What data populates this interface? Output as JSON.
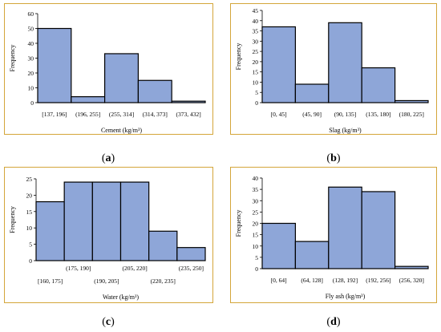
{
  "chart_data": [
    {
      "type": "bar",
      "caption": "a",
      "xlabel": "Cement (kg/m³)",
      "ylabel": "Frequency",
      "ylim": [
        0,
        60
      ],
      "yticks": [
        0,
        10,
        20,
        30,
        40,
        50,
        60
      ],
      "categories": [
        "[137, 196]",
        "(196, 255]",
        "(255, 314]",
        "(314, 373]",
        "(373, 432]"
      ],
      "values": [
        50,
        4,
        33,
        15,
        1
      ],
      "label_rows": [
        0,
        0,
        0,
        0,
        0
      ],
      "grid": false,
      "colors": {
        "fill": "#8ea6d8",
        "edge": "#000000"
      }
    },
    {
      "type": "bar",
      "caption": "b",
      "xlabel": "Slag (kg/m³)",
      "ylabel": "Frequency",
      "ylim": [
        0,
        45
      ],
      "yticks": [
        0,
        5,
        10,
        15,
        20,
        25,
        30,
        35,
        40,
        45
      ],
      "categories": [
        "[0, 45]",
        "(45, 90]",
        "(90, 135]",
        "(135, 180]",
        "(180, 225]"
      ],
      "values": [
        37,
        9,
        39,
        17,
        1
      ],
      "label_rows": [
        0,
        0,
        0,
        0,
        0
      ],
      "grid": false,
      "colors": {
        "fill": "#8ea6d8",
        "edge": "#000000"
      }
    },
    {
      "type": "bar",
      "caption": "c",
      "xlabel": "Water (kg/m³)",
      "ylabel": "Frequency",
      "ylim": [
        0,
        25
      ],
      "yticks": [
        0,
        5,
        10,
        15,
        20,
        25
      ],
      "categories": [
        "[160, 175]",
        "(175, 190]",
        "(190, 205]",
        "(205, 220]",
        "(220, 235]",
        "(235, 250]"
      ],
      "values": [
        18,
        24,
        24,
        24,
        9,
        4
      ],
      "label_rows": [
        1,
        0,
        1,
        0,
        1,
        0
      ],
      "grid": false,
      "colors": {
        "fill": "#8ea6d8",
        "edge": "#000000"
      }
    },
    {
      "type": "bar",
      "caption": "d",
      "xlabel": "Fly ash (kg/m³)",
      "ylabel": "Frequency",
      "ylim": [
        0,
        40
      ],
      "yticks": [
        0,
        5,
        10,
        15,
        20,
        25,
        30,
        35,
        40
      ],
      "categories": [
        "[0, 64]",
        "(64, 128]",
        "(128, 192]",
        "(192, 256]",
        "(256, 320]"
      ],
      "values": [
        20,
        12,
        36,
        34,
        1
      ],
      "label_rows": [
        0,
        0,
        0,
        0,
        0
      ],
      "grid": false,
      "colors": {
        "fill": "#8ea6d8",
        "edge": "#000000"
      }
    }
  ]
}
